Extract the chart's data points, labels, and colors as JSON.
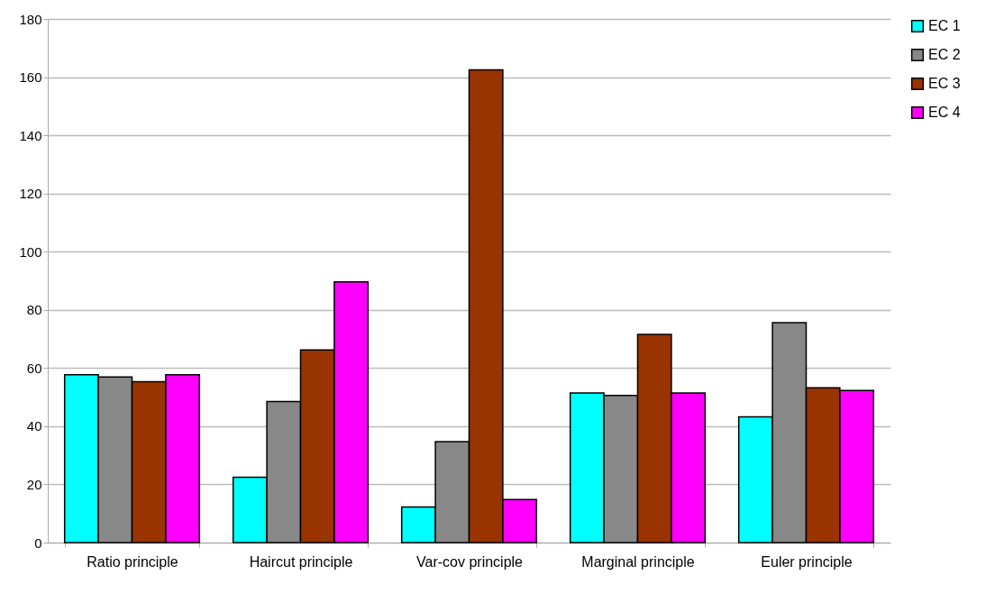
{
  "chart_data": {
    "type": "bar",
    "categories": [
      "Ratio principle",
      "Haircut principle",
      "Var-cov principle",
      "Marginal principle",
      "Euler principle"
    ],
    "series": [
      {
        "name": "EC 1",
        "color": "#00ffff",
        "values": [
          57.7,
          22.5,
          12.2,
          51.4,
          43.2
        ]
      },
      {
        "name": "EC 2",
        "color": "#888888",
        "values": [
          56.9,
          48.5,
          34.7,
          50.6,
          75.6
        ]
      },
      {
        "name": "EC 3",
        "color": "#993300",
        "values": [
          55.3,
          66.2,
          162.5,
          71.6,
          53.2
        ]
      },
      {
        "name": "EC 4",
        "color": "#ff00ff",
        "values": [
          57.7,
          89.6,
          14.8,
          51.4,
          52.3
        ]
      }
    ],
    "ylim": [
      0,
      180
    ],
    "yticks": [
      0,
      20,
      40,
      60,
      80,
      100,
      120,
      140,
      160,
      180
    ],
    "grid": "y",
    "legend": "right"
  }
}
